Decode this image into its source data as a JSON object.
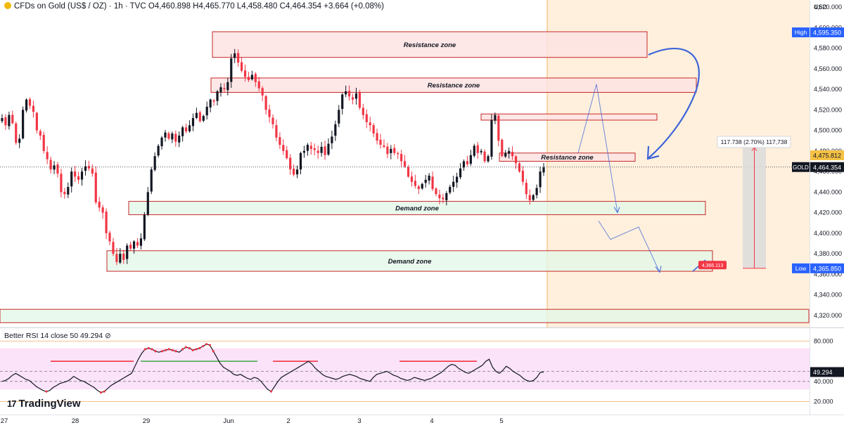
{
  "header": {
    "symbol": "CFDs on Gold (US$ / OZ) · 1h · TVC",
    "ohlc": "O4,460.898 H4,465.770 L4,458.480 C4,464.354 +3.664 (+0.08%)"
  },
  "currency": "USD",
  "rsi_header": "Better RSI 14 close 50  49.294",
  "rsi_settings_icon": "settings-icon",
  "brand": "TradingView",
  "brand_icon": "tradingview-logo-icon",
  "colors": {
    "up": "#131722",
    "down": "#f23645",
    "resistance_fill": "#fde3e3",
    "demand_fill": "#e4f7e9",
    "projection_bg": "#fff0dd",
    "arrow": "#3d64d8",
    "rsi_band": "#f9d9f7",
    "price_label": "#2962ff"
  },
  "labels": {
    "high_tag": "High",
    "high_value": "4,595.350",
    "low_tag": "Low",
    "low_value": "4,365.850",
    "gold_tag": "GOLD",
    "gold_value": "4,464.354",
    "target_value": "4,475.812",
    "measure_text": "117.738 (2.70%) 117,738",
    "marker_value": "4,366.113",
    "rsi_value": "49.294"
  },
  "chart_data": {
    "type": "candlestick",
    "title": "CFDs on Gold (US$ / OZ) · 1h · TVC",
    "y_axis_ticks": [
      "4,620.000",
      "4,600.000",
      "4,580.000",
      "4,560.000",
      "4,540.000",
      "4,520.000",
      "4,500.000",
      "4,480.000",
      "4,460.000",
      "4,440.000",
      "4,420.000",
      "4,400.000",
      "4,380.000",
      "4,360.000",
      "4,340.000",
      "4,320.000"
    ],
    "x_axis_ticks": [
      "27",
      "28",
      "29",
      "Jun",
      "2",
      "3",
      "4",
      "5"
    ],
    "ylim": [
      4312,
      4628
    ],
    "close_path": [
      4512,
      4505,
      4515,
      4507,
      4488,
      4492,
      4520,
      4530,
      4524,
      4518,
      4500,
      4495,
      4480,
      4472,
      4462,
      4466,
      4458,
      4440,
      4438,
      4445,
      4460,
      4455,
      4452,
      4460,
      4465,
      4463,
      4458,
      4430,
      4425,
      4420,
      4400,
      4392,
      4380,
      4372,
      4380,
      4374,
      4388,
      4385,
      4392,
      4388,
      4395,
      4418,
      4440,
      4462,
      4475,
      4485,
      4493,
      4498,
      4492,
      4497,
      4489,
      4495,
      4503,
      4499,
      4505,
      4512,
      4517,
      4509,
      4514,
      4523,
      4530,
      4528,
      4538,
      4542,
      4540,
      4547,
      4570,
      4575,
      4566,
      4558,
      4552,
      4549,
      4554,
      4547,
      4541,
      4534,
      4520,
      4513,
      4506,
      4493,
      4486,
      4480,
      4473,
      4462,
      4457,
      4462,
      4478,
      4480,
      4486,
      4482,
      4481,
      4478,
      4484,
      4476,
      4487,
      4494,
      4506,
      4520,
      4535,
      4538,
      4533,
      4530,
      4536,
      4522,
      4515,
      4508,
      4505,
      4497,
      4490,
      4486,
      4484,
      4477,
      4482,
      4478,
      4477,
      4470,
      4465,
      4455,
      4450,
      4446,
      4443,
      4448,
      4452,
      4456,
      4443,
      4438,
      4434,
      4433,
      4439,
      4445,
      4450,
      4455,
      4463,
      4470,
      4467,
      4476,
      4485,
      4478,
      4480,
      4470,
      4475,
      4510,
      4515,
      4490,
      4475,
      4478,
      4480,
      4475,
      4468,
      4460,
      4450,
      4438,
      4432,
      4437,
      4444,
      4460,
      4464
    ],
    "zones": [
      {
        "label": "Resistance zone",
        "top": 4596,
        "bottom": 4571
      },
      {
        "label": "Resistance zone",
        "top": 4551,
        "bottom": 4537
      },
      {
        "label": "",
        "top": 4516,
        "bottom": 4510
      },
      {
        "label": "Resistance zone",
        "top": 4478,
        "bottom": 4470
      },
      {
        "label": "Demand zone",
        "top": 4431,
        "bottom": 4418
      },
      {
        "label": "Demand zone",
        "top": 4383,
        "bottom": 4363
      },
      {
        "label": "",
        "top": 4326,
        "bottom": 4313
      }
    ],
    "projection": [
      4545,
      4420,
      4412,
      4394,
      4406,
      4362
    ],
    "measure": {
      "from": 4365.85,
      "to": 4483.588,
      "text": "117.738 (2.70%) 117,738"
    },
    "rsi": {
      "length": 14,
      "source": "close",
      "mid": 50,
      "value": 49.294,
      "y_axis_ticks": [
        "80.000",
        "50.000",
        "40.000",
        "20.000"
      ],
      "ylim": [
        15,
        85
      ],
      "values": [
        40,
        41,
        43,
        46,
        48,
        46,
        44,
        42,
        41,
        38,
        35,
        33,
        31,
        30,
        31,
        34,
        36,
        38,
        39,
        40,
        42,
        45,
        43,
        41,
        40,
        38,
        36,
        34,
        31,
        29,
        30,
        33,
        36,
        38,
        40,
        42,
        44,
        46,
        48,
        55,
        62,
        68,
        72,
        73,
        72,
        70,
        69,
        70,
        71,
        72,
        71,
        70,
        69,
        72,
        74,
        73,
        71,
        72,
        73,
        75,
        77,
        76,
        70,
        64,
        58,
        54,
        52,
        50,
        47,
        46,
        47,
        45,
        43,
        42,
        44,
        43,
        40,
        36,
        32,
        30,
        35,
        40,
        44,
        46,
        48,
        50,
        52,
        54,
        56,
        58,
        60,
        57,
        53,
        50,
        47,
        45,
        44,
        43,
        42,
        43,
        45,
        46,
        47,
        46,
        45,
        43,
        42,
        41,
        40,
        44,
        47,
        48,
        49,
        50,
        48,
        46,
        45,
        43,
        42,
        41,
        42,
        44,
        43,
        42,
        41,
        42,
        43,
        45,
        47,
        49,
        52,
        55,
        57,
        56,
        53,
        51,
        49,
        48,
        50,
        52,
        54,
        56,
        60,
        62,
        54,
        50,
        48,
        51,
        55,
        53,
        50,
        48,
        46,
        43,
        41,
        40,
        41,
        44,
        49,
        49.294
      ]
    }
  }
}
